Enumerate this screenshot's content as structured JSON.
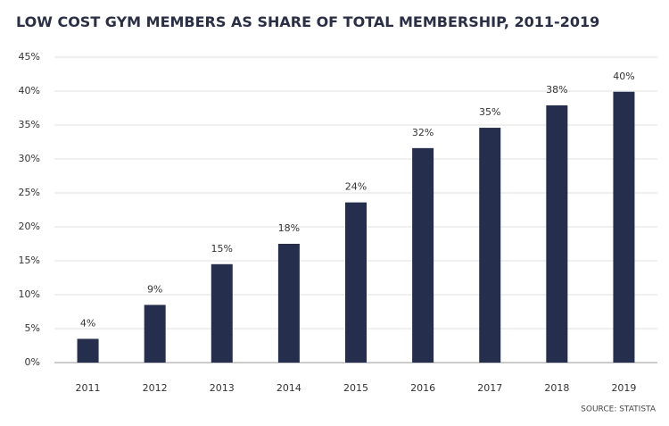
{
  "chart_data": {
    "type": "bar",
    "title": "LOW COST GYM MEMBERS AS SHARE OF TOTAL MEMBERSHIP, 2011-2019",
    "source": "SOURCE: STATISTA",
    "categories": [
      "2011",
      "2012",
      "2013",
      "2014",
      "2015",
      "2016",
      "2017",
      "2018",
      "2019"
    ],
    "values": [
      3.5,
      8.5,
      14.5,
      17.5,
      23.6,
      31.6,
      34.6,
      37.9,
      39.9
    ],
    "value_labels": [
      "4%",
      "9%",
      "15%",
      "18%",
      "24%",
      "32%",
      "35%",
      "38%",
      "40%"
    ],
    "color": "#252e4d",
    "ylim": [
      0,
      45
    ],
    "yticks": [
      {
        "value": 0,
        "label": "0%"
      },
      {
        "value": 5,
        "label": "5%"
      },
      {
        "value": 10,
        "label": "10%"
      },
      {
        "value": 15,
        "label": "15%"
      },
      {
        "value": 20,
        "label": "20%"
      },
      {
        "value": 25,
        "label": "25%"
      },
      {
        "value": 30,
        "label": "30%"
      },
      {
        "value": 35,
        "label": "35%"
      },
      {
        "value": 40,
        "label": "40%"
      },
      {
        "value": 45,
        "label": "45%"
      }
    ],
    "grid": true
  }
}
